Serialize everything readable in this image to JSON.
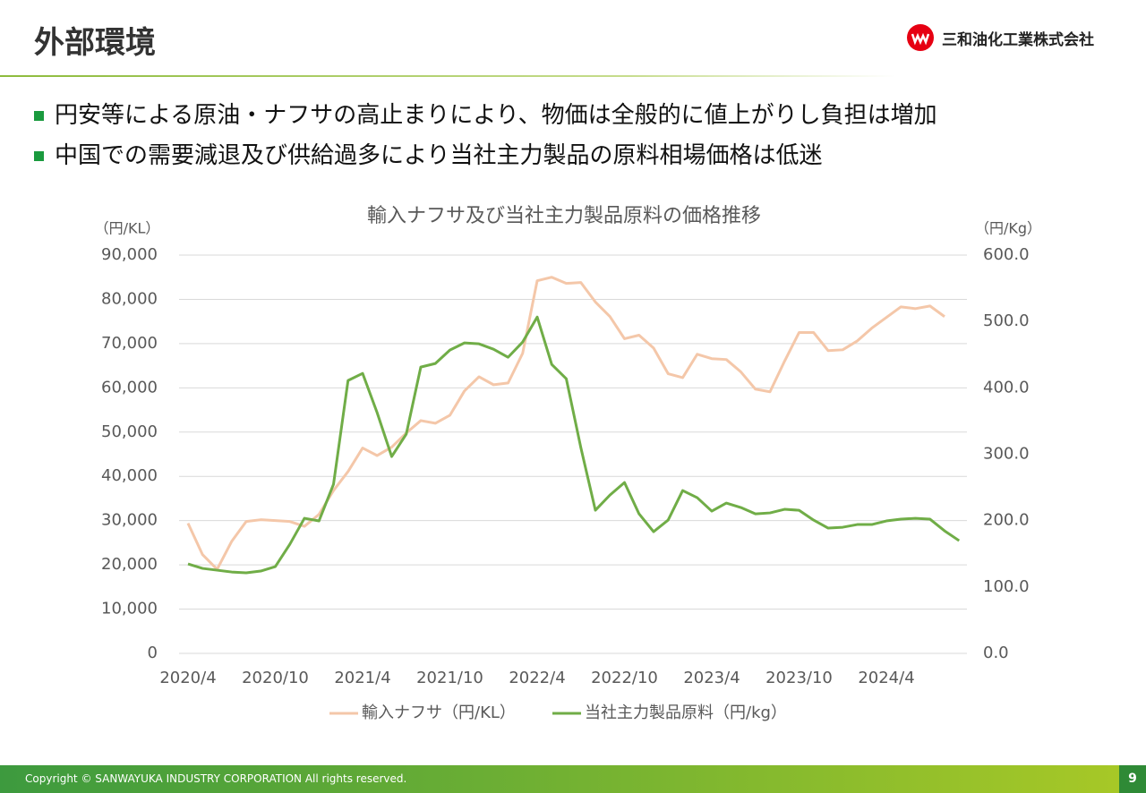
{
  "header": {
    "title": "外部環境",
    "company": "三和油化工業株式会社"
  },
  "bullets": [
    "円安等による原油・ナフサの高止まりにより、物価は全般的に値上がりし負担は増加",
    "中国での需要減退及び供給過多により当社主力製品の原料相場価格は低迷"
  ],
  "chart_data": {
    "type": "line",
    "title": "輸入ナフサ及び当社主力製品原料の価格推移",
    "y_label": "（円/KL）",
    "y2_label": "（円/Kg）",
    "categories": [
      "2020/4",
      null,
      null,
      null,
      null,
      null,
      "2020/10",
      null,
      null,
      null,
      null,
      null,
      "2021/4",
      null,
      null,
      null,
      null,
      null,
      "2021/10",
      null,
      null,
      null,
      null,
      null,
      "2022/4",
      null,
      null,
      null,
      null,
      null,
      "2022/10",
      null,
      null,
      null,
      null,
      null,
      "2023/4",
      null,
      null,
      null,
      null,
      null,
      "2023/10",
      null,
      null,
      null,
      null,
      null,
      "2024/4",
      null,
      null,
      null,
      null,
      null
    ],
    "series": [
      {
        "name": "輸入ナフサ（円/KL）",
        "color": "#f4c7a9",
        "axis": "y",
        "values": [
          29400,
          22300,
          19000,
          25300,
          29800,
          30200,
          30000,
          29800,
          28700,
          31400,
          36800,
          41100,
          46400,
          44700,
          46600,
          49800,
          52600,
          52000,
          53800,
          59300,
          62500,
          60700,
          61100,
          67800,
          84200,
          85000,
          83600,
          83800,
          79400,
          76100,
          71100,
          71900,
          69000,
          63200,
          62300,
          67600,
          66600,
          66400,
          63600,
          59700,
          59100,
          66000,
          72500,
          72500,
          68400,
          68600,
          70600,
          73500,
          75900,
          78300,
          77900,
          78500,
          76100,
          null
        ]
      },
      {
        "name": "当社主力製品原料（円/kg）",
        "color": "#70ad47",
        "axis": "y2",
        "values": [
          134.8,
          128.0,
          125.3,
          122.6,
          121.3,
          124.0,
          130.7,
          164.4,
          203.5,
          199.5,
          254.7,
          411.1,
          421.8,
          362.5,
          296.5,
          330.2,
          431.3,
          436.7,
          456.9,
          467.7,
          466.3,
          458.2,
          446.1,
          469.0,
          506.7,
          435.3,
          413.7,
          310.0,
          215.6,
          238.5,
          257.4,
          210.2,
          183.3,
          200.8,
          245.3,
          234.5,
          214.3,
          226.4,
          219.7,
          210.2,
          211.6,
          217.0,
          215.6,
          200.8,
          188.7,
          190.0,
          194.1,
          194.1,
          199.5,
          202.2,
          203.5,
          202.2,
          184.6,
          169.8
        ]
      }
    ],
    "ylim": [
      0,
      90000
    ],
    "yticks": [
      0,
      {
        "value": 10000,
        "label": "10,000"
      },
      {
        "value": 20000,
        "label": "20,000"
      },
      {
        "value": 30000,
        "label": "30,000"
      },
      {
        "value": 40000,
        "label": "40,000"
      },
      {
        "value": 50000,
        "label": "50,000"
      },
      {
        "value": 60000,
        "label": "60,000"
      },
      {
        "value": 70000,
        "label": "70,000"
      },
      {
        "value": 80000,
        "label": "80,000"
      },
      {
        "value": 90000,
        "label": "90,000"
      }
    ],
    "y2lim": [
      0,
      600
    ],
    "y2ticks": [
      {
        "value": 0,
        "label": "0.0"
      },
      {
        "value": 100,
        "label": "100.0"
      },
      {
        "value": 200,
        "label": "200.0"
      },
      {
        "value": 300,
        "label": "300.0"
      },
      {
        "value": 400,
        "label": "400.0"
      },
      {
        "value": 500,
        "label": "500.0"
      },
      {
        "value": 600,
        "label": "600.0"
      }
    ],
    "grid": true,
    "legend": "bottom"
  },
  "footer": {
    "copyright": "Copyright © SANWAYUKA INDUSTRY CORPORATION All rights reserved.",
    "page": 9
  }
}
